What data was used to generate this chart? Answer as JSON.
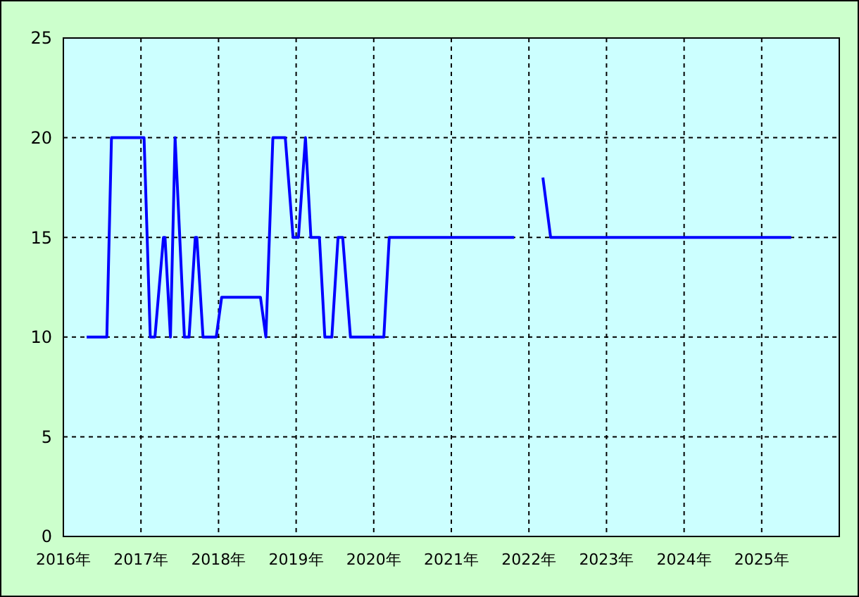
{
  "chart_data": {
    "type": "line",
    "color": "#0000ff",
    "x": [
      2016.3,
      2016.56,
      2016.62,
      2017.04,
      2017.12,
      2017.18,
      2017.29,
      2017.31,
      2017.38,
      2017.44,
      2017.56,
      2017.62,
      2017.7,
      2017.72,
      2017.8,
      2017.97,
      2018.04,
      2018.12,
      2018.54,
      2018.61,
      2018.7,
      2018.86,
      2018.96,
      2019.03,
      2019.12,
      2019.19,
      2019.3,
      2019.37,
      2019.46,
      2019.54,
      2019.6,
      2019.7,
      2020.13,
      2020.2,
      2021.81,
      2022.0,
      2022.18,
      2022.28,
      2025.38
    ],
    "values": [
      10,
      10,
      20,
      20,
      10,
      10,
      15,
      15,
      10,
      20,
      10,
      10,
      15,
      15,
      10,
      10,
      12,
      12,
      12,
      10,
      20,
      20,
      15,
      15,
      20,
      15,
      15,
      10,
      10,
      15,
      15,
      10,
      10,
      15,
      15,
      null,
      18,
      15,
      15
    ],
    "xlim": [
      2016,
      2026
    ],
    "xticks": [
      {
        "value": 2016,
        "label": "2016年"
      },
      {
        "value": 2017,
        "label": "2017年"
      },
      {
        "value": 2018,
        "label": "2018年"
      },
      {
        "value": 2019,
        "label": "2019年"
      },
      {
        "value": 2020,
        "label": "2020年"
      },
      {
        "value": 2021,
        "label": "2021年"
      },
      {
        "value": 2022,
        "label": "2022年"
      },
      {
        "value": 2023,
        "label": "2023年"
      },
      {
        "value": 2024,
        "label": "2024年"
      },
      {
        "value": 2025,
        "label": "2025年"
      }
    ],
    "ylim": [
      0,
      25
    ],
    "yticks": [
      0,
      5,
      10,
      15,
      20,
      25
    ],
    "grid": true
  }
}
